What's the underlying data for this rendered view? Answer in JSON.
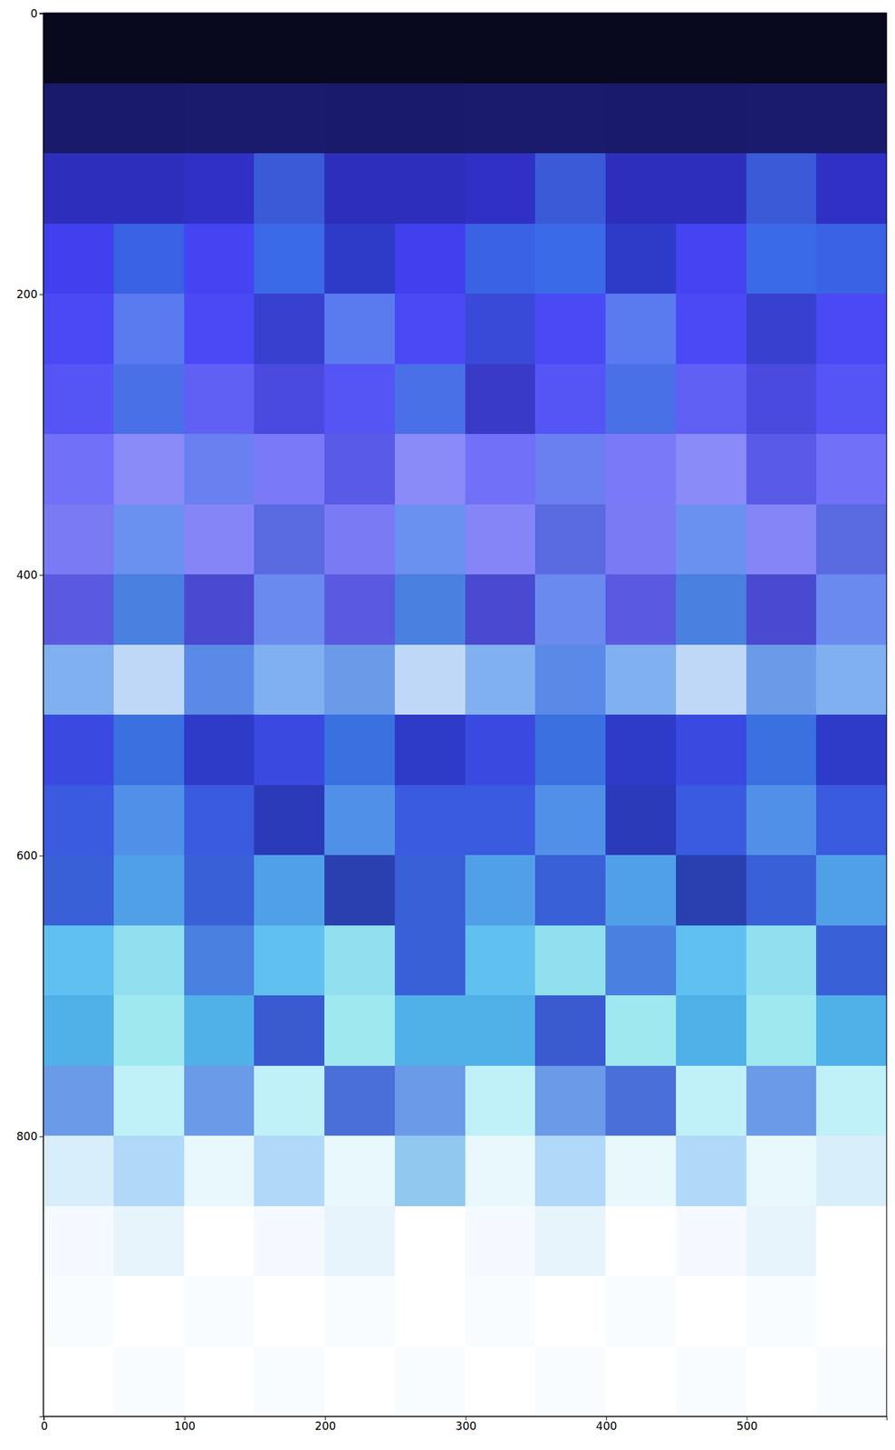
{
  "chart_data": {
    "type": "image",
    "xlim": [
      -0.5,
      599.5
    ],
    "ylim": [
      999.5,
      -0.5
    ],
    "xticks": [
      0,
      100,
      200,
      300,
      400,
      500
    ],
    "yticks": [
      0,
      200,
      400,
      600,
      800
    ],
    "cells": [
      [
        "#08081e",
        "#08081e",
        "#08081e",
        "#08081e",
        "#08081e",
        "#08081e",
        "#08081e",
        "#08081e",
        "#08081e",
        "#08081e",
        "#08081e",
        "#08081e"
      ],
      [
        "#1a1a6a",
        "#1a1a6a",
        "#1b1b6e",
        "#1b1b6e",
        "#1a1a6a",
        "#1a1a6a",
        "#1b1b6e",
        "#1b1b6e",
        "#1a1a6a",
        "#1a1a6a",
        "#1b1b6e",
        "#1b1b6e"
      ],
      [
        "#2e2ebd",
        "#2e2ebd",
        "#3030c6",
        "#3a5ad8",
        "#2e2ebd",
        "#2e2ebd",
        "#3030c6",
        "#3a5ad8",
        "#2e2ebd",
        "#2e2ebd",
        "#3a5ad8",
        "#3030c6"
      ],
      [
        "#4040ee",
        "#3a62e4",
        "#4444f2",
        "#3a6ae8",
        "#2e3ac8",
        "#4040ee",
        "#3a62e4",
        "#3a6ae8",
        "#2e3ac8",
        "#4444f2",
        "#3a6ae8",
        "#3a62e4"
      ],
      [
        "#4a4af5",
        "#5a7af0",
        "#4a4af5",
        "#3840d0",
        "#5a7af0",
        "#4a4af5",
        "#3a4ad8",
        "#4a4af5",
        "#5a7af0",
        "#4a4af5",
        "#3840d0",
        "#4a4af5"
      ],
      [
        "#5555f5",
        "#4a70e8",
        "#6060f5",
        "#4a4ae0",
        "#5555f5",
        "#4a70e8",
        "#3a3ac8",
        "#5555f5",
        "#4a70e8",
        "#6060f5",
        "#4a4ae0",
        "#5555f5"
      ],
      [
        "#7070f8",
        "#8a8af8",
        "#6a80f0",
        "#7a7af8",
        "#5a5ae8",
        "#8a8af8",
        "#7070f8",
        "#6a80f0",
        "#7a7af8",
        "#8a8af8",
        "#5a5ae8",
        "#7070f8"
      ],
      [
        "#7a7af5",
        "#6a90f0",
        "#8585f8",
        "#5a6ae0",
        "#7a7af5",
        "#6a90f0",
        "#8585f8",
        "#5a6ae0",
        "#7a7af5",
        "#6a90f0",
        "#8585f8",
        "#5a6ae0"
      ],
      [
        "#5a5ae0",
        "#4a80e0",
        "#4a4ad0",
        "#6a8af0",
        "#5a5ae0",
        "#4a80e0",
        "#4a4ad0",
        "#6a8af0",
        "#5a5ae0",
        "#4a80e0",
        "#4a4ad0",
        "#6a8af0"
      ],
      [
        "#80b0f0",
        "#c0d8f8",
        "#5a8ae8",
        "#80b0f0",
        "#6a9ae8",
        "#c0d8f8",
        "#80b0f0",
        "#5a8ae8",
        "#80b0f0",
        "#c0d8f8",
        "#6a9ae8",
        "#80b0f0"
      ],
      [
        "#3a4ae0",
        "#3a70e0",
        "#2e3ac8",
        "#3a4ae0",
        "#3a70e0",
        "#2e3ac8",
        "#3a4ae0",
        "#3a70e0",
        "#2e3ac8",
        "#3a4ae0",
        "#3a70e0",
        "#2e3ac8"
      ],
      [
        "#3a5ae0",
        "#5090e8",
        "#3a5ae0",
        "#2a3ab8",
        "#5090e8",
        "#3a5ae0",
        "#3a5ae0",
        "#5090e8",
        "#2a3ab8",
        "#3a5ae0",
        "#5090e8",
        "#3a5ae0"
      ],
      [
        "#3a60d8",
        "#50a0e8",
        "#3a60d8",
        "#50a0e8",
        "#2a40b0",
        "#3a60d8",
        "#50a0e8",
        "#3a60d8",
        "#50a0e8",
        "#2a40b0",
        "#3a60d8",
        "#50a0e8"
      ],
      [
        "#60c0f0",
        "#90e0f0",
        "#4a80e0",
        "#60c0f0",
        "#90e0f0",
        "#3a60d8",
        "#60c0f0",
        "#90e0f0",
        "#4a80e0",
        "#60c0f0",
        "#90e0f0",
        "#3a60d8"
      ],
      [
        "#50b0e8",
        "#a0e8f0",
        "#50b0e8",
        "#3a5ad0",
        "#a0e8f0",
        "#50b0e8",
        "#50b0e8",
        "#3a5ad0",
        "#a0e8f0",
        "#50b0e8",
        "#a0e8f0",
        "#50b0e8"
      ],
      [
        "#6a9ae8",
        "#c0f0f8",
        "#6a9ae8",
        "#c0f0f8",
        "#4a70d8",
        "#6a9ae8",
        "#c0f0f8",
        "#6a9ae8",
        "#4a70d8",
        "#c0f0f8",
        "#6a9ae8",
        "#c0f0f8"
      ],
      [
        "#d8eefa",
        "#b0d8f8",
        "#e8f8fc",
        "#b0d8f8",
        "#e8f8fc",
        "#90c8f0",
        "#e8f8fc",
        "#b0d8f8",
        "#e8f8fc",
        "#b0d8f8",
        "#e8f8fc",
        "#d8eefa"
      ],
      [
        "#f4faff",
        "#e8f4fc",
        "#ffffff",
        "#f4faff",
        "#e8f4fc",
        "#ffffff",
        "#f4faff",
        "#e8f4fc",
        "#ffffff",
        "#f4faff",
        "#e8f4fc",
        "#ffffff"
      ],
      [
        "#f8fcff",
        "#ffffff",
        "#f8fcff",
        "#ffffff",
        "#f8fcff",
        "#ffffff",
        "#f8fcff",
        "#ffffff",
        "#f8fcff",
        "#ffffff",
        "#f8fcff",
        "#ffffff"
      ],
      [
        "#ffffff",
        "#f8fcff",
        "#ffffff",
        "#f8fcff",
        "#ffffff",
        "#f8fcff",
        "#ffffff",
        "#f8fcff",
        "#ffffff",
        "#f8fcff",
        "#ffffff",
        "#f8fcff"
      ]
    ]
  }
}
